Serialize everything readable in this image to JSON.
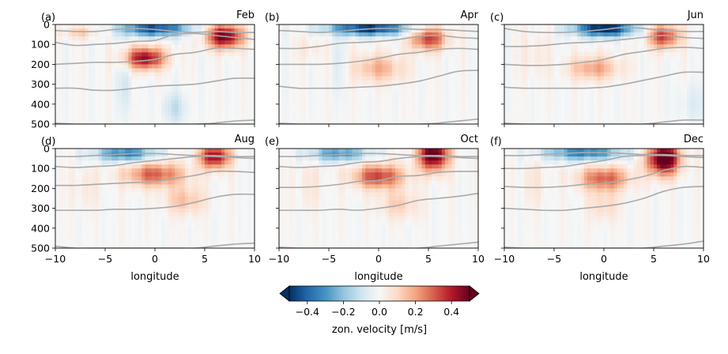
{
  "chart_data": {
    "type": "heatmap",
    "colorbar": {
      "label": "zon. velocity [m/s]",
      "range": [
        -0.5,
        0.5
      ],
      "ticks": [
        "−0.4",
        "−0.2",
        "0.0",
        "0.2",
        "0.4"
      ],
      "colormap": "RdBu_r",
      "extend": "both"
    },
    "xlabel": "longitude",
    "xlim": [
      -10,
      10
    ],
    "ylim": [
      500,
      0
    ],
    "xticks": [
      "−10",
      "−5",
      "0",
      "5",
      "10"
    ],
    "yticks": [
      "0",
      "100",
      "200",
      "300",
      "400",
      "500"
    ],
    "contour_color": "#aaaaaa",
    "panels": [
      {
        "tag": "(a)",
        "month": "Feb",
        "blobs": [
          [
            0,
            20,
            3.5,
            40,
            -0.45
          ],
          [
            7,
            60,
            1.8,
            60,
            0.5
          ],
          [
            -1,
            170,
            2,
            55,
            0.45
          ],
          [
            -7.5,
            40,
            2,
            30,
            0.12
          ],
          [
            2,
            420,
            1.2,
            80,
            -0.12
          ],
          [
            -3,
            300,
            0.8,
            150,
            -0.08
          ]
        ],
        "contours": [
          [
            30,
            35,
            35,
            25,
            20,
            25,
            35,
            40,
            35,
            40,
            40
          ],
          [
            90,
            105,
            100,
            95,
            85,
            80,
            50,
            45,
            55,
            65,
            75
          ],
          [
            200,
            195,
            190,
            190,
            185,
            175,
            150,
            140,
            120,
            120,
            125
          ],
          [
            320,
            320,
            330,
            330,
            320,
            310,
            305,
            300,
            285,
            270,
            270
          ],
          [
            495,
            500,
            500,
            500,
            500,
            500,
            500,
            500,
            495,
            485,
            480
          ]
        ]
      },
      {
        "tag": "(b)",
        "month": "Apr",
        "blobs": [
          [
            -1,
            20,
            4,
            35,
            -0.5
          ],
          [
            5,
            70,
            1.8,
            60,
            0.35
          ],
          [
            0,
            220,
            2.5,
            70,
            0.18
          ],
          [
            -7,
            120,
            1.5,
            60,
            0.05
          ],
          [
            -4,
            200,
            0.7,
            140,
            -0.06
          ]
        ],
        "contours": [
          [
            30,
            35,
            40,
            35,
            25,
            20,
            20,
            25,
            25,
            30,
            35
          ],
          [
            120,
            120,
            110,
            95,
            90,
            85,
            75,
            60,
            55,
            65,
            70
          ],
          [
            200,
            200,
            200,
            195,
            185,
            170,
            150,
            140,
            125,
            120,
            125
          ],
          [
            310,
            320,
            320,
            320,
            315,
            310,
            300,
            285,
            260,
            235,
            230
          ],
          [
            495,
            500,
            500,
            500,
            500,
            500,
            500,
            500,
            495,
            485,
            475
          ]
        ]
      },
      {
        "tag": "(c)",
        "month": "Jun",
        "blobs": [
          [
            0,
            20,
            3,
            40,
            -0.55
          ],
          [
            6,
            60,
            1.6,
            60,
            0.35
          ],
          [
            -1,
            220,
            2.5,
            60,
            0.2
          ],
          [
            -7,
            150,
            1.5,
            120,
            0.05
          ],
          [
            9,
            400,
            1.5,
            100,
            -0.06
          ]
        ],
        "contours": [
          [
            20,
            35,
            40,
            40,
            35,
            25,
            15,
            20,
            30,
            35,
            35
          ],
          [
            110,
            110,
            105,
            95,
            90,
            85,
            75,
            65,
            55,
            65,
            70
          ],
          [
            200,
            205,
            205,
            200,
            190,
            175,
            150,
            135,
            120,
            115,
            120
          ],
          [
            315,
            320,
            320,
            320,
            320,
            315,
            300,
            280,
            260,
            240,
            240
          ],
          [
            495,
            500,
            500,
            500,
            500,
            500,
            500,
            500,
            490,
            480,
            480
          ]
        ]
      },
      {
        "tag": "(d)",
        "month": "Aug",
        "blobs": [
          [
            -3,
            25,
            3,
            40,
            -0.35
          ],
          [
            6,
            40,
            1.5,
            60,
            0.45
          ],
          [
            0,
            130,
            3,
            60,
            0.3
          ],
          [
            3,
            260,
            2,
            70,
            0.15
          ],
          [
            -7,
            200,
            1.5,
            100,
            0.05
          ]
        ],
        "contours": [
          [
            40,
            40,
            35,
            30,
            25,
            25,
            30,
            35,
            35,
            40,
            40
          ],
          [
            90,
            95,
            90,
            85,
            70,
            60,
            50,
            40,
            40,
            45,
            50
          ],
          [
            185,
            185,
            180,
            175,
            170,
            165,
            150,
            135,
            115,
            115,
            120
          ],
          [
            310,
            310,
            310,
            305,
            305,
            300,
            290,
            270,
            245,
            230,
            230
          ],
          [
            490,
            500,
            500,
            500,
            500,
            500,
            500,
            500,
            490,
            480,
            475
          ]
        ]
      },
      {
        "tag": "(e)",
        "month": "Oct",
        "blobs": [
          [
            -4,
            25,
            3,
            40,
            -0.3
          ],
          [
            5.5,
            30,
            1.5,
            80,
            0.55
          ],
          [
            0,
            140,
            2.5,
            60,
            0.35
          ],
          [
            2,
            280,
            2,
            70,
            0.12
          ],
          [
            -7,
            180,
            1.5,
            120,
            0.05
          ]
        ],
        "contours": [
          [
            40,
            40,
            35,
            30,
            25,
            25,
            30,
            35,
            35,
            40,
            40
          ],
          [
            90,
            95,
            90,
            85,
            70,
            65,
            50,
            40,
            40,
            45,
            50
          ],
          [
            195,
            195,
            190,
            180,
            165,
            160,
            140,
            135,
            120,
            115,
            115
          ],
          [
            310,
            310,
            310,
            305,
            310,
            300,
            285,
            260,
            250,
            240,
            225
          ],
          [
            495,
            500,
            500,
            500,
            500,
            500,
            500,
            500,
            490,
            480,
            470
          ]
        ]
      },
      {
        "tag": "(f)",
        "month": "Dec",
        "blobs": [
          [
            -2,
            20,
            4,
            40,
            -0.35
          ],
          [
            6,
            50,
            1.6,
            80,
            0.6
          ],
          [
            0,
            150,
            2.5,
            60,
            0.3
          ],
          [
            -7,
            170,
            1.5,
            120,
            0.05
          ],
          [
            0,
            280,
            1.5,
            80,
            0.1
          ]
        ],
        "contours": [
          [
            35,
            35,
            30,
            25,
            20,
            20,
            25,
            30,
            30,
            35,
            35
          ],
          [
            100,
            100,
            95,
            90,
            75,
            60,
            40,
            35,
            35,
            40,
            45
          ],
          [
            190,
            195,
            195,
            190,
            180,
            175,
            160,
            140,
            110,
            90,
            95
          ],
          [
            300,
            305,
            310,
            310,
            300,
            290,
            275,
            250,
            215,
            195,
            190
          ],
          [
            495,
            500,
            500,
            500,
            500,
            500,
            500,
            500,
            490,
            480,
            465
          ]
        ]
      }
    ]
  }
}
